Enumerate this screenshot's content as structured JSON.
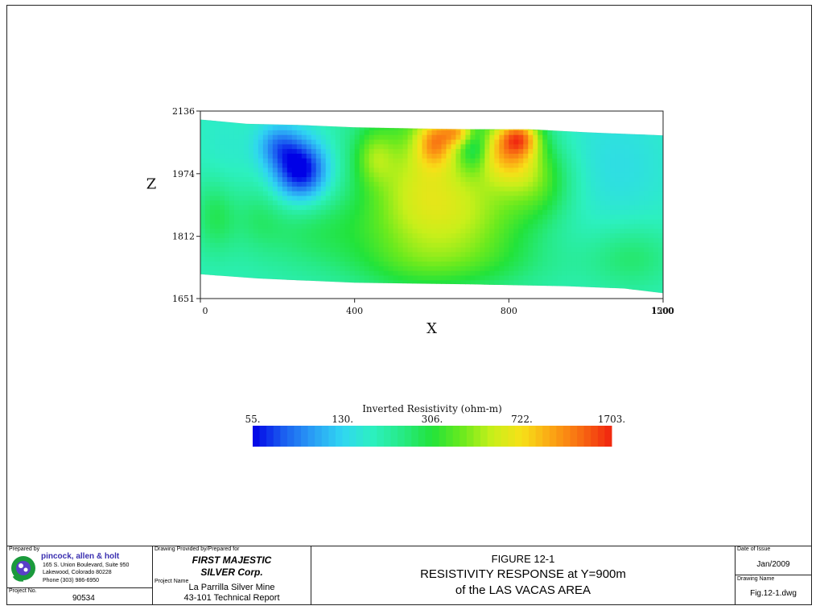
{
  "chart_data": {
    "type": "heatmap",
    "xlabel": "X",
    "ylabel": "Z",
    "xlim": [
      0,
      1200
    ],
    "ylim": [
      1651,
      2136
    ],
    "x_ticks": [
      "0",
      "400",
      "800",
      "1200"
    ],
    "x_ticks_overprint": "1500",
    "y_ticks": [
      "2136",
      "1974",
      "1812",
      "1651"
    ],
    "y_tick_values": [
      2136,
      1974,
      1812,
      1651
    ],
    "top_surface": [
      [
        0,
        2114
      ],
      [
        120,
        2103
      ],
      [
        250,
        2100
      ],
      [
        400,
        2094
      ],
      [
        550,
        2091
      ],
      [
        700,
        2089
      ],
      [
        850,
        2089
      ],
      [
        1000,
        2081
      ],
      [
        1200,
        2073
      ]
    ],
    "bottom_surface": [
      [
        0,
        1714
      ],
      [
        150,
        1703
      ],
      [
        400,
        1692
      ],
      [
        700,
        1688
      ],
      [
        950,
        1683
      ],
      [
        1100,
        1677
      ],
      [
        1200,
        1665
      ]
    ],
    "background_log_resistivity": 2.25,
    "anomalies": [
      {
        "x": 260,
        "z": 1985,
        "sx": 50,
        "sz": 55,
        "log_resistivity": -0.55
      },
      {
        "x": 200,
        "z": 2050,
        "sx": 40,
        "sz": 40,
        "log_resistivity": -0.25
      },
      {
        "x": 60,
        "z": 2000,
        "sx": 45,
        "sz": 120,
        "log_resistivity": -0.05
      },
      {
        "x": 40,
        "z": 1870,
        "sx": 40,
        "sz": 70,
        "log_resistivity": 0.2
      },
      {
        "x": 150,
        "z": 1870,
        "sx": 45,
        "sz": 60,
        "log_resistivity": 0.1
      },
      {
        "x": 450,
        "z": 2020,
        "sx": 35,
        "sz": 50,
        "log_resistivity": 0.2
      },
      {
        "x": 1080,
        "z": 2000,
        "sx": 110,
        "sz": 130,
        "log_resistivity": -0.1
      },
      {
        "x": 1120,
        "z": 1760,
        "sx": 80,
        "sz": 60,
        "log_resistivity": 0.15
      },
      {
        "x": 560,
        "z": 1940,
        "sx": 110,
        "sz": 160,
        "log_resistivity": 0.45
      },
      {
        "x": 610,
        "z": 2060,
        "sx": 35,
        "sz": 45,
        "log_resistivity": 0.45
      },
      {
        "x": 670,
        "z": 2085,
        "sx": 30,
        "sz": 25,
        "log_resistivity": 0.4
      },
      {
        "x": 800,
        "z": 2040,
        "sx": 55,
        "sz": 60,
        "log_resistivity": 0.55
      },
      {
        "x": 830,
        "z": 2070,
        "sx": 35,
        "sz": 30,
        "log_resistivity": 0.4
      },
      {
        "x": 730,
        "z": 1870,
        "sx": 110,
        "sz": 110,
        "log_resistivity": 0.3
      },
      {
        "x": 880,
        "z": 1960,
        "sx": 60,
        "sz": 70,
        "log_resistivity": 0.25
      },
      {
        "x": 710,
        "z": 2040,
        "sx": 25,
        "sz": 40,
        "log_resistivity": -0.2
      },
      {
        "x": 300,
        "z": 1830,
        "sx": 120,
        "sz": 60,
        "log_resistivity": 0.15
      },
      {
        "x": 600,
        "z": 1740,
        "sx": 250,
        "sz": 50,
        "log_resistivity": 0.1
      }
    ],
    "colorbar": {
      "title": "Inverted Resistivity (ohm-m)",
      "labels": [
        "55.",
        "130.",
        "306.",
        "722.",
        "1703."
      ],
      "values": [
        55,
        130,
        306,
        722,
        1703
      ],
      "colors": [
        "#0000e6",
        "#1a5cf0",
        "#2a9ef5",
        "#30d6f2",
        "#2cf0c0",
        "#27ea85",
        "#22e33a",
        "#6aea1e",
        "#c8ef1a",
        "#f7e018",
        "#fba514",
        "#f86a12",
        "#f0230f"
      ]
    }
  },
  "title_block": {
    "prepared_by_label": "Prepared by",
    "company_name": "pincock, allen & holt",
    "address_line1": "165 S. Union Boulevard, Suite 950",
    "address_line2": "Lakewood, Colorado 80228",
    "phone": "Phone (303) 986-6950",
    "project_no_label": "Project No.",
    "project_no": "90534",
    "drawing_provided_label": "Drawing Provided by/Prepared for",
    "client_line1": "FIRST MAJESTIC",
    "client_line2": "SILVER Corp.",
    "project_name_label": "Project Name",
    "project_name_line1": "La Parrilla Silver Mine",
    "project_name_line2": "43-101 Technical Report",
    "figure_number": "FIGURE 12-1",
    "figure_title_line1": "RESISTIVITY RESPONSE at Y=900m",
    "figure_title_line2": "of the LAS VACAS AREA",
    "date_label": "Date of Issue",
    "date": "Jan/2009",
    "drawing_name_label": "Drawing Name",
    "drawing_name": "Fig.12-1.dwg"
  }
}
